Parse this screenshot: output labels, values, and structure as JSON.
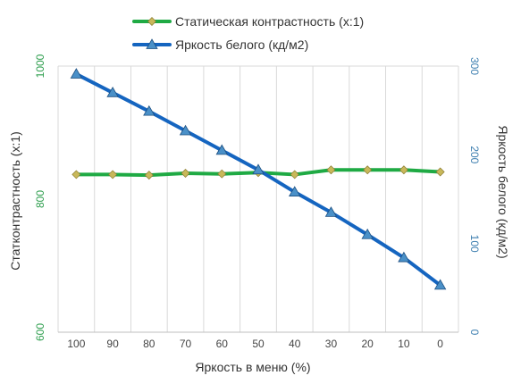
{
  "chart_data": {
    "type": "line",
    "x": [
      100,
      90,
      80,
      70,
      60,
      50,
      40,
      30,
      20,
      10,
      0
    ],
    "xlabel": "Яркость в меню (%)",
    "ylabel_left": "Статконтрастность  (x:1)",
    "ylabel_right": "Яркость белого (кд/м2)",
    "ylim_left": [
      600,
      1000
    ],
    "yticks_left": [
      "600",
      "800",
      "1000"
    ],
    "ylim_right": [
      0,
      300
    ],
    "yticks_right": [
      "0",
      "100",
      "200",
      "300"
    ],
    "grid": "vertical",
    "legend_position": "top-center",
    "series": [
      {
        "name": "Статическая контрастность  (x:1)",
        "axis": "left",
        "color": "#1faa44",
        "marker_color": "#c8b85a",
        "marker": "diamond",
        "values": [
          837,
          837,
          836,
          839,
          838,
          840,
          837,
          844,
          844,
          844,
          841
        ]
      },
      {
        "name": "Яркость белого (кд/м2)",
        "axis": "right",
        "color": "#1565c0",
        "marker_color": "#4a90c8",
        "marker": "triangle",
        "values": [
          291,
          270,
          249,
          227,
          205,
          183,
          158,
          135,
          110,
          84,
          53
        ]
      }
    ],
    "colors": {
      "left_axis_text": "#2e9e4e",
      "right_axis_text": "#3e7fb0",
      "grid": "#d9d9d9",
      "text": "#333333"
    }
  }
}
